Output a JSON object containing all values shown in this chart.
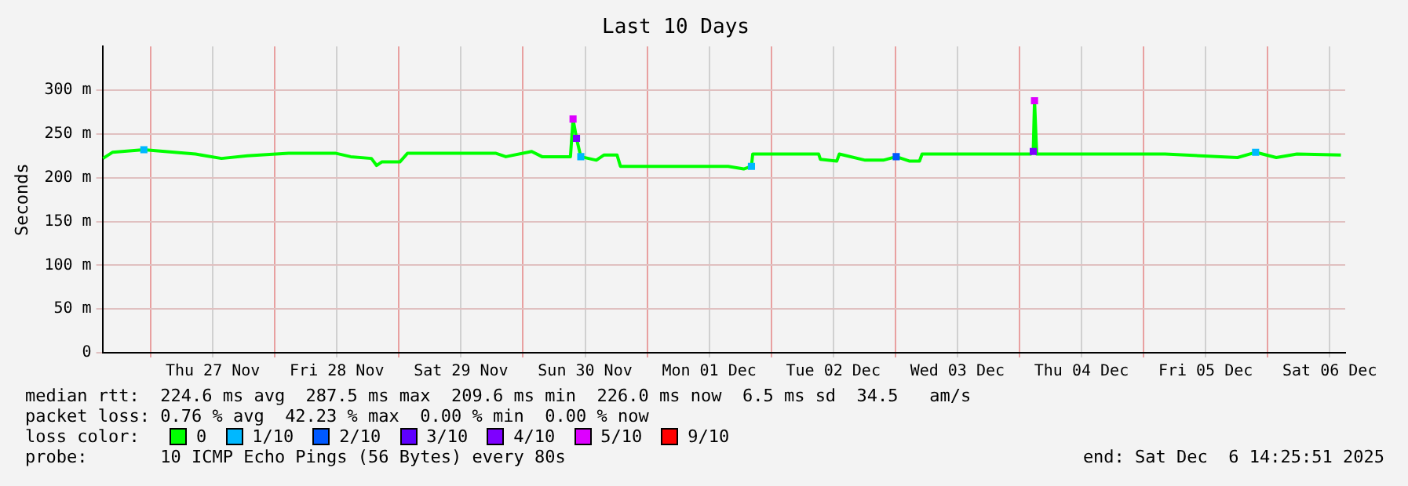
{
  "chart_data": {
    "type": "line",
    "title": "Last 10 Days",
    "ylabel": "Seconds",
    "legend_title": "loss color:",
    "legend": "bottom",
    "grid": true,
    "line_style": "solid",
    "xlim": [
      "2025-11-26T14:40",
      "2025-12-06T15:00"
    ],
    "xticks": [
      {
        "value": "2025-11-27T00:00",
        "label": null
      },
      {
        "value": "2025-11-27T12:00",
        "label": "Thu 27 Nov"
      },
      {
        "value": "2025-11-28T00:00",
        "label": null
      },
      {
        "value": "2025-11-28T12:00",
        "label": "Fri 28 Nov"
      },
      {
        "value": "2025-11-29T00:00",
        "label": null
      },
      {
        "value": "2025-11-29T12:00",
        "label": "Sat 29 Nov"
      },
      {
        "value": "2025-11-30T00:00",
        "label": null
      },
      {
        "value": "2025-11-30T12:00",
        "label": "Sun 30 Nov"
      },
      {
        "value": "2025-12-01T00:00",
        "label": null
      },
      {
        "value": "2025-12-01T12:00",
        "label": "Mon 01 Dec"
      },
      {
        "value": "2025-12-02T00:00",
        "label": null
      },
      {
        "value": "2025-12-02T12:00",
        "label": "Tue 02 Dec"
      },
      {
        "value": "2025-12-03T00:00",
        "label": null
      },
      {
        "value": "2025-12-03T12:00",
        "label": "Wed 03 Dec"
      },
      {
        "value": "2025-12-04T00:00",
        "label": null
      },
      {
        "value": "2025-12-04T12:00",
        "label": "Thu 04 Dec"
      },
      {
        "value": "2025-12-05T00:00",
        "label": null
      },
      {
        "value": "2025-12-05T12:00",
        "label": "Fri 05 Dec"
      },
      {
        "value": "2025-12-06T00:00",
        "label": null
      },
      {
        "value": "2025-12-06T12:00",
        "label": "Sat 06 Dec"
      }
    ],
    "ylim": [
      0,
      350
    ],
    "yticks": [
      0,
      {
        "value": 50,
        "label": "50 m"
      },
      {
        "value": 100,
        "label": "100 m"
      },
      {
        "value": 150,
        "label": "150 m"
      },
      {
        "value": 200,
        "label": "200 m"
      },
      {
        "value": 250,
        "label": "250 m"
      },
      {
        "value": 300,
        "label": "300 m"
      }
    ],
    "series": [
      {
        "name": "0",
        "color": "#00ff00",
        "marker": "none",
        "x": [
          "2025-11-26T14:45",
          "2025-11-26T16:35",
          "2025-11-26T22:40",
          "2025-11-27T08:40",
          "2025-11-27T13:40",
          "2025-11-27T18:40",
          "2025-11-28T02:40",
          "2025-11-28T11:40",
          "2025-11-28T14:40",
          "2025-11-28T18:40",
          "2025-11-28T19:40",
          "2025-11-28T20:40",
          "2025-11-29T00:10",
          "2025-11-29T01:40",
          "2025-11-29T18:40",
          "2025-11-29T20:40",
          "2025-11-30T01:40",
          "2025-11-30T03:40",
          "2025-11-30T09:10",
          "2025-11-30T09:40",
          "2025-11-30T10:20",
          "2025-11-30T11:10",
          "2025-11-30T14:10",
          "2025-11-30T15:40",
          "2025-11-30T18:10",
          "2025-11-30T18:50",
          "2025-12-01T02:10",
          "2025-12-01T15:40",
          "2025-12-01T18:40",
          "2025-12-01T20:10",
          "2025-12-01T20:25",
          "2025-12-02T09:10",
          "2025-12-02T09:30",
          "2025-12-02T12:40",
          "2025-12-02T13:10",
          "2025-12-02T18:10",
          "2025-12-02T21:40",
          "2025-12-03T00:10",
          "2025-12-03T02:40",
          "2025-12-03T04:40",
          "2025-12-03T05:10",
          "2025-12-04T02:10",
          "2025-12-04T02:40",
          "2025-12-04T02:55",
          "2025-12-04T03:20",
          "2025-12-05T04:10",
          "2025-12-05T18:10",
          "2025-12-05T21:40",
          "2025-12-06T01:40",
          "2025-12-06T05:40",
          "2025-12-06T14:10"
        ],
        "values": [
          222,
          229,
          232,
          227,
          222,
          225,
          228,
          228,
          224,
          222,
          214,
          218,
          218,
          228,
          228,
          224,
          230,
          224,
          224,
          267,
          245,
          224,
          220,
          226,
          226,
          213,
          213,
          213,
          210,
          213,
          227,
          227,
          221,
          219,
          227,
          220,
          220,
          224,
          219,
          219,
          227,
          227,
          230,
          288,
          227,
          227,
          223,
          229,
          223,
          227,
          226
        ]
      },
      {
        "name": "1/10",
        "type": "scatter",
        "marker": "square",
        "color": "#00b8ff",
        "x": [
          "2025-11-26T22:40",
          "2025-11-30T11:10",
          "2025-12-01T20:10",
          "2025-12-05T21:40"
        ],
        "values": [
          232,
          224,
          213,
          229
        ]
      },
      {
        "name": "2/10",
        "type": "scatter",
        "marker": "square",
        "color": "#0059ff",
        "x": [
          "2025-12-03T00:10"
        ],
        "values": [
          224
        ]
      },
      {
        "name": "3/10",
        "type": "scatter",
        "color": "#5e00ff"
      },
      {
        "name": "4/10",
        "type": "scatter",
        "marker": "square",
        "color": "#7e00ff",
        "x": [
          "2025-11-30T10:20",
          "2025-12-04T02:40"
        ],
        "values": [
          245,
          230
        ]
      },
      {
        "name": "5/10",
        "type": "scatter",
        "marker": "square",
        "color": "#dd00ff",
        "x": [
          "2025-11-30T09:40",
          "2025-12-04T02:55"
        ],
        "values": [
          267,
          288
        ]
      },
      {
        "name": "9/10",
        "type": "scatter",
        "color": "#ff0000"
      }
    ],
    "annotations": [
      "median rtt:  224.6 ms avg  287.5 ms max  209.6 ms min  226.0 ms now  6.5 ms sd  34.5   am/s",
      "packet loss: 0.76 % avg  42.23 % max  0.00 % min  0.00 % now",
      "probe:       10 ICMP Echo Pings (56 Bytes) every 80s",
      "end: Sat Dec  6 14:25:51 2025"
    ]
  }
}
